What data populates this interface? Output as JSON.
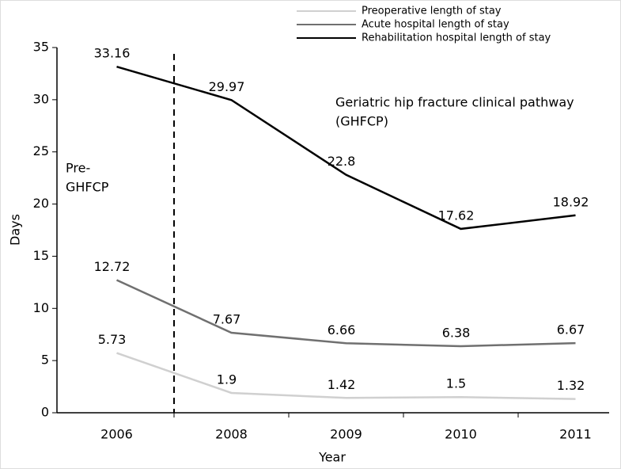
{
  "chart_data": {
    "type": "line",
    "annotations": [
      [
        "Geriatric hip fracture clinical pathway",
        "(GHFCP)"
      ],
      [
        "Pre-",
        "GHFCP"
      ]
    ],
    "xlabel": "Year",
    "ylabel": "Days",
    "categories": [
      "2006",
      "2008",
      "2009",
      "2010",
      "2011"
    ],
    "series": [
      {
        "name": "Preoperative length of stay",
        "color": "#d0d0d0",
        "values": [
          5.73,
          1.9,
          1.42,
          1.5,
          1.32
        ]
      },
      {
        "name": "Acute hospital length of stay",
        "color": "#707070",
        "values": [
          12.72,
          7.67,
          6.66,
          6.38,
          6.67
        ]
      },
      {
        "name": "Rehabilitation hospital length of stay",
        "color": "#000000",
        "values": [
          33.16,
          29.97,
          22.8,
          17.62,
          18.92
        ]
      }
    ],
    "ylim": [
      0,
      35
    ],
    "yticks": [
      0,
      5,
      10,
      15,
      20,
      25,
      30,
      35
    ],
    "grid": false
  }
}
